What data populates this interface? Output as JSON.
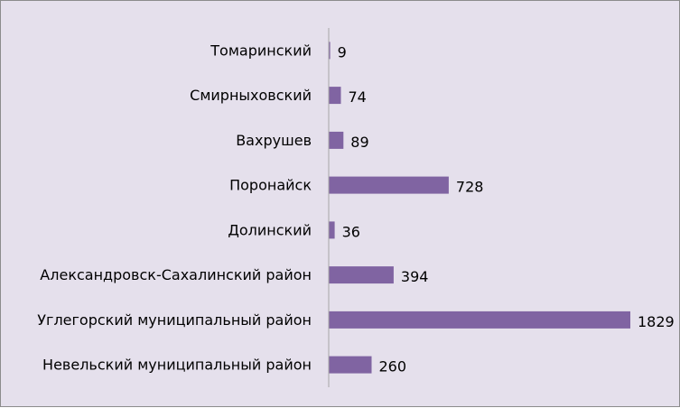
{
  "chart_data": {
    "type": "bar",
    "orientation": "horizontal",
    "title": "",
    "xlabel": "",
    "ylabel": "",
    "categories": [
      "Томаринский",
      "Смирныховский",
      "Вахрушев",
      "Поронайск",
      "Долинский",
      "Александровск-Сахалинский район",
      "Углегорский муниципальный район",
      "Невельский муниципальный район"
    ],
    "values": [
      9,
      74,
      89,
      728,
      36,
      394,
      1829,
      260
    ],
    "data_labels": [
      "9",
      "74",
      "89",
      "728",
      "36",
      "394",
      "1829",
      "260"
    ],
    "xlim": [
      0,
      1829
    ],
    "grid": false,
    "legend": "none",
    "bar_color": "#8064a2",
    "background_color": "#e5e0ec",
    "axis_color": "#a6a6a6"
  }
}
